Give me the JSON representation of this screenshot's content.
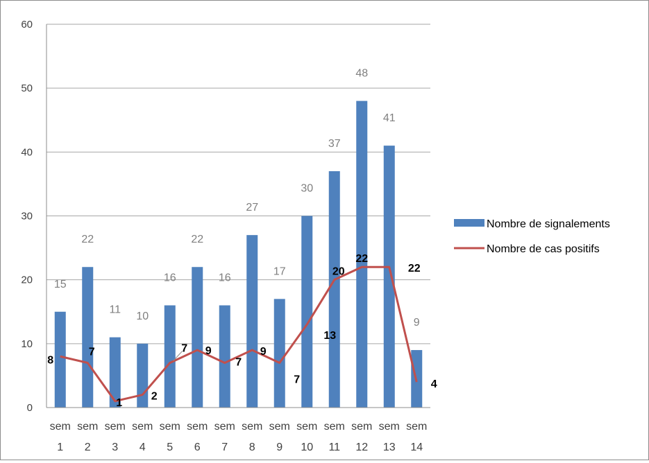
{
  "chart_data": {
    "type": "bar",
    "title": "",
    "xlabel": "",
    "ylabel": "",
    "ylim": [
      0,
      60
    ],
    "yticks": [
      0,
      10,
      20,
      30,
      40,
      50,
      60
    ],
    "grid": true,
    "legend_position": "right",
    "categories": [
      [
        "sem",
        "1"
      ],
      [
        "sem",
        "2"
      ],
      [
        "sem",
        "3"
      ],
      [
        "sem",
        "4"
      ],
      [
        "sem",
        "5"
      ],
      [
        "sem",
        "6"
      ],
      [
        "sem",
        "7"
      ],
      [
        "sem",
        "8"
      ],
      [
        "sem",
        "9"
      ],
      [
        "sem",
        "10"
      ],
      [
        "sem",
        "11"
      ],
      [
        "sem",
        "12"
      ],
      [
        "sem",
        "13"
      ],
      [
        "sem",
        "14"
      ]
    ],
    "series": [
      {
        "name": "Nombre de signalements",
        "type": "bar",
        "color": "#4f81bd",
        "label_color": "#7f7f7f",
        "values": [
          15,
          22,
          11,
          10,
          16,
          22,
          16,
          27,
          17,
          30,
          37,
          48,
          41,
          9
        ]
      },
      {
        "name": "Nombre de cas positifs",
        "type": "line",
        "color": "#c0504d",
        "label_color": "#000000",
        "values": [
          8,
          7,
          1,
          2,
          7,
          9,
          7,
          9,
          7,
          13,
          20,
          22,
          22,
          4
        ]
      }
    ]
  }
}
